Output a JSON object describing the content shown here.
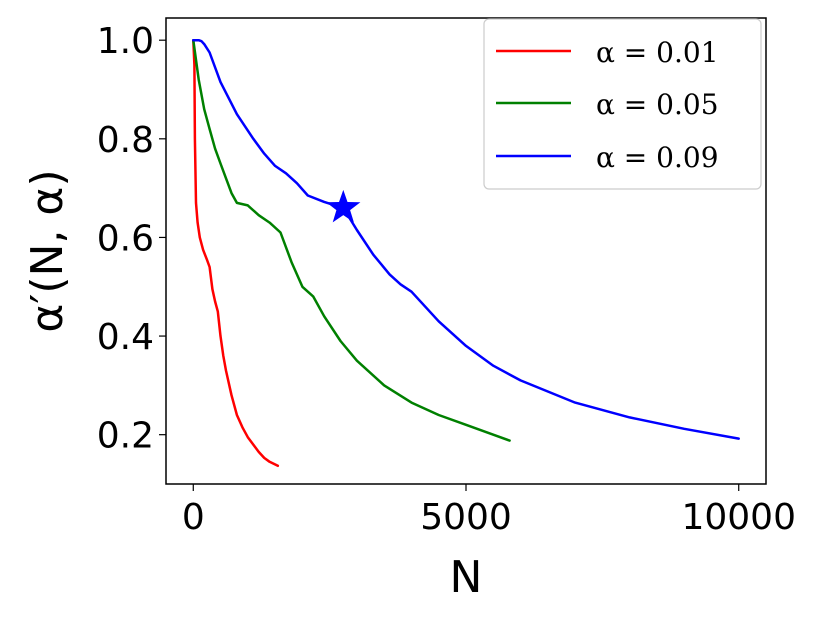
{
  "chart_data": {
    "type": "line",
    "xlabel": "N",
    "ylabel": "α′(N, α)",
    "xlim": [
      -500,
      10500
    ],
    "ylim": [
      0.1,
      1.045
    ],
    "xticks": [
      0,
      5000,
      10000
    ],
    "xtick_labels": [
      "0",
      "5000",
      "10000"
    ],
    "yticks": [
      0.2,
      0.4,
      0.6,
      0.8,
      1.0
    ],
    "ytick_labels": [
      "0.2",
      "0.4",
      "0.6",
      "0.8",
      "1.0"
    ],
    "grid": false,
    "legend_position": "top-right",
    "series": [
      {
        "name": "α = 0.01",
        "color": "#ff0000",
        "x": [
          0,
          20,
          30,
          50,
          80,
          120,
          180,
          250,
          300,
          350,
          400,
          450,
          500,
          550,
          600,
          700,
          800,
          900,
          1000,
          1100,
          1200,
          1300,
          1400,
          1550
        ],
        "y": [
          1.0,
          0.95,
          0.8,
          0.67,
          0.63,
          0.6,
          0.575,
          0.555,
          0.54,
          0.495,
          0.47,
          0.45,
          0.4,
          0.36,
          0.33,
          0.28,
          0.24,
          0.215,
          0.195,
          0.18,
          0.165,
          0.153,
          0.145,
          0.137
        ]
      },
      {
        "name": "α = 0.05",
        "color": "#008000",
        "x": [
          0,
          100,
          200,
          300,
          400,
          500,
          600,
          700,
          800,
          1000,
          1200,
          1400,
          1600,
          1800,
          2000,
          2200,
          2400,
          2700,
          3000,
          3500,
          4000,
          4500,
          5000,
          5500,
          5800
        ],
        "y": [
          1.0,
          0.92,
          0.86,
          0.82,
          0.78,
          0.75,
          0.72,
          0.69,
          0.67,
          0.665,
          0.645,
          0.63,
          0.61,
          0.55,
          0.5,
          0.48,
          0.44,
          0.39,
          0.35,
          0.3,
          0.265,
          0.24,
          0.22,
          0.2,
          0.188
        ]
      },
      {
        "name": "α = 0.09",
        "color": "#0000ff",
        "x": [
          0,
          100,
          150,
          200,
          300,
          500,
          800,
          1100,
          1300,
          1500,
          1700,
          1900,
          2100,
          2400,
          2750,
          3000,
          3300,
          3600,
          3800,
          4000,
          4500,
          5000,
          5500,
          6000,
          7000,
          8000,
          9000,
          10000
        ],
        "y": [
          1.0,
          1.0,
          0.998,
          0.992,
          0.975,
          0.915,
          0.85,
          0.8,
          0.77,
          0.745,
          0.73,
          0.71,
          0.685,
          0.672,
          0.66,
          0.615,
          0.565,
          0.525,
          0.505,
          0.49,
          0.43,
          0.38,
          0.34,
          0.31,
          0.265,
          0.235,
          0.212,
          0.192
        ]
      }
    ],
    "annotations": [
      {
        "type": "star-marker",
        "x": 2750,
        "y": 0.66,
        "color": "#0000ff"
      }
    ]
  }
}
